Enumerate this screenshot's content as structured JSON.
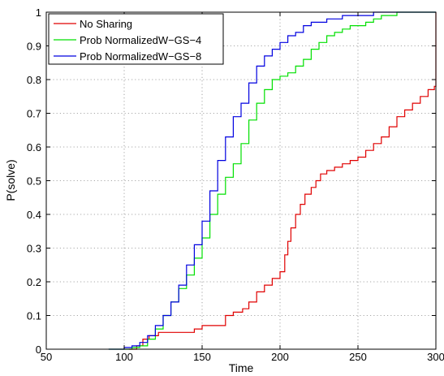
{
  "chart_data": {
    "type": "line",
    "title": "",
    "xlabel": "Time",
    "ylabel": "P(solve)",
    "xlim": [
      50,
      300
    ],
    "ylim": [
      0,
      1
    ],
    "xticks": [
      50,
      100,
      150,
      200,
      250,
      300
    ],
    "yticks": [
      0,
      0.1,
      0.2,
      0.3,
      0.4,
      0.5,
      0.6,
      0.7,
      0.8,
      0.9,
      1
    ],
    "xtick_labels": [
      "50",
      "100",
      "150",
      "200",
      "250",
      "300"
    ],
    "ytick_labels": [
      "0",
      "0.1",
      "0.2",
      "0.3",
      "0.4",
      "0.5",
      "0.6",
      "0.7",
      "0.8",
      "0.9",
      "1"
    ],
    "grid": true,
    "legend_position": "top-left",
    "series": [
      {
        "name": "No Sharing",
        "color": "#e00000",
        "x": [
          103,
          108,
          112,
          116,
          122,
          130,
          145,
          150,
          160,
          165,
          170,
          176,
          180,
          185,
          190,
          195,
          200,
          203,
          205,
          207,
          210,
          213,
          216,
          220,
          223,
          226,
          230,
          235,
          240,
          245,
          250,
          255,
          260,
          265,
          270,
          275,
          280,
          285,
          290,
          295,
          299,
          300,
          300
        ],
        "y": [
          0,
          0.01,
          0.03,
          0.04,
          0.05,
          0.05,
          0.06,
          0.07,
          0.07,
          0.1,
          0.11,
          0.12,
          0.14,
          0.17,
          0.19,
          0.21,
          0.23,
          0.28,
          0.32,
          0.36,
          0.4,
          0.43,
          0.46,
          0.48,
          0.5,
          0.52,
          0.53,
          0.54,
          0.55,
          0.56,
          0.57,
          0.59,
          0.61,
          0.63,
          0.66,
          0.69,
          0.71,
          0.73,
          0.75,
          0.77,
          0.78,
          0.8,
          1.0
        ]
      },
      {
        "name": "Prob NormalizedW−GS−4",
        "color": "#00e000",
        "x": [
          90,
          105,
          110,
          115,
          120,
          125,
          130,
          135,
          140,
          145,
          150,
          155,
          160,
          165,
          170,
          175,
          180,
          185,
          190,
          195,
          200,
          205,
          210,
          215,
          220,
          225,
          230,
          235,
          240,
          245,
          250,
          255,
          260,
          265,
          270,
          275,
          280,
          300
        ],
        "y": [
          0,
          0.005,
          0.01,
          0.03,
          0.06,
          0.1,
          0.14,
          0.18,
          0.22,
          0.27,
          0.33,
          0.4,
          0.46,
          0.51,
          0.55,
          0.61,
          0.68,
          0.73,
          0.77,
          0.8,
          0.81,
          0.82,
          0.84,
          0.86,
          0.89,
          0.91,
          0.93,
          0.94,
          0.95,
          0.96,
          0.96,
          0.97,
          0.98,
          0.99,
          0.99,
          1.0,
          1.0,
          1.0
        ]
      },
      {
        "name": "Prob NormalizedW−GS−8",
        "color": "#0000e0",
        "x": [
          90,
          100,
          105,
          110,
          115,
          120,
          125,
          130,
          135,
          140,
          145,
          150,
          155,
          160,
          165,
          170,
          175,
          180,
          185,
          190,
          195,
          200,
          205,
          210,
          215,
          220,
          225,
          230,
          235,
          240,
          245,
          250,
          255,
          260,
          265,
          270,
          275,
          280,
          300
        ],
        "y": [
          0,
          0.005,
          0.01,
          0.02,
          0.04,
          0.07,
          0.1,
          0.14,
          0.19,
          0.25,
          0.31,
          0.38,
          0.47,
          0.56,
          0.63,
          0.69,
          0.73,
          0.79,
          0.84,
          0.87,
          0.89,
          0.91,
          0.93,
          0.94,
          0.96,
          0.97,
          0.97,
          0.98,
          0.98,
          0.99,
          0.99,
          0.99,
          0.99,
          1.0,
          1.0,
          1.0,
          1.0,
          1.0,
          1.0
        ]
      }
    ]
  }
}
